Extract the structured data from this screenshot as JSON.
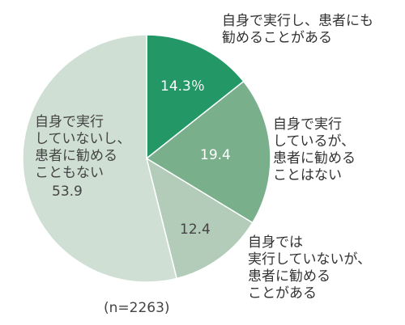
{
  "chart_data": {
    "type": "pie",
    "sample_size": "(n=2263)",
    "slices": [
      {
        "label_lines": [
          "自身で実行し、患者にも",
          "勧めることがある"
        ],
        "value": 14.3,
        "value_label": "14.3％",
        "color": "#239866"
      },
      {
        "label_lines": [
          "自身で実行",
          "しているが、",
          "患者に勧める",
          "ことはない"
        ],
        "value": 19.4,
        "value_label": "19.4",
        "color": "#7aaf8c"
      },
      {
        "label_lines": [
          "自身では",
          "実行していないが、",
          "患者に勧める",
          "ことがある"
        ],
        "value": 12.4,
        "value_label": "12.4",
        "color": "#b2ccb9"
      },
      {
        "label_lines": [
          "自身で実行",
          "していないし、",
          "患者に勧める",
          "こともない"
        ],
        "value": 53.9,
        "value_label": "53.9",
        "color": "#cfdfd3"
      }
    ]
  }
}
